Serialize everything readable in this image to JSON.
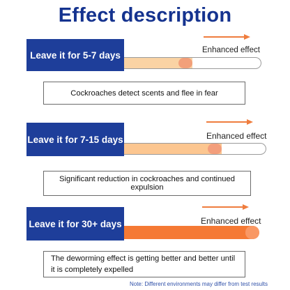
{
  "title": "Effect description",
  "rows": [
    {
      "label": "Leave it for 5-7 days",
      "enhanced_label": "Enhanced effect",
      "level": 0.52,
      "fill_color": "#fad3a4",
      "knob_color": "#f2a07a",
      "description": "Cockroaches detect scents and flee in fear"
    },
    {
      "label": "Leave it for 7-15 days",
      "enhanced_label": "Enhanced effect",
      "level": 0.7,
      "fill_color": "#fcc690",
      "knob_color": "#f39e7c",
      "description": "Significant reduction in cockroaches and continued expulsion"
    },
    {
      "label": "Leave it for 30+ days",
      "enhanced_label": "Enhanced effect",
      "level": 1.0,
      "fill_color": "#f57934",
      "knob_color": "#f99864",
      "description_line1": "The deworming effect is getting better and better until",
      "description_line2": "it is completely expelled"
    }
  ],
  "arrow_color": "#ef7d3e",
  "note": "Note: Different environments may differ from test results"
}
